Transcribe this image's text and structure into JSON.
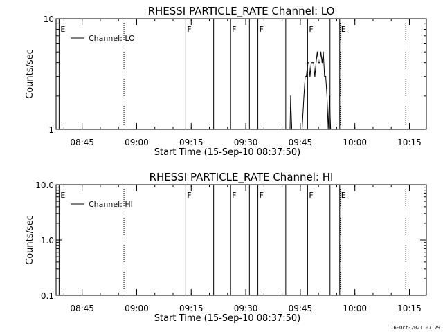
{
  "chart_data": [
    {
      "type": "line",
      "title": "RHESSI PARTICLE_RATE Channel: LO",
      "xlabel": "Start Time (15-Sep-10 08:37:50)",
      "ylabel": "Counts/sec",
      "yscale": "log",
      "ylim": [
        1,
        10
      ],
      "yticks": [
        {
          "v": 1,
          "label": "1"
        },
        {
          "v": 10,
          "label": "10"
        }
      ],
      "xlim": [
        "08:37:50",
        "10:19:40"
      ],
      "xticks": [
        "08:45",
        "09:00",
        "09:15",
        "09:30",
        "09:45",
        "10:00",
        "10:15"
      ],
      "legend": {
        "label": "Channel: LO",
        "position": "top-left"
      },
      "series": [
        {
          "name": "Channel: LO",
          "x": [
            "09:41:30",
            "09:42:10",
            "09:42:20",
            "09:42:40",
            "09:43:00",
            "09:43:20",
            "09:45:30",
            "09:46:00",
            "09:46:20",
            "09:46:40",
            "09:47:00",
            "09:47:20",
            "09:47:40",
            "09:48:00",
            "09:48:20",
            "09:48:40",
            "09:49:00",
            "09:49:20",
            "09:49:40",
            "09:50:00",
            "09:50:20",
            "09:50:40",
            "09:51:00",
            "09:51:20",
            "09:51:40",
            "09:52:00",
            "09:52:20",
            "09:52:40",
            "09:53:00",
            "09:53:20",
            "09:53:40"
          ],
          "y": [
            1,
            1,
            2,
            1,
            1,
            1,
            1,
            2,
            3,
            3,
            4,
            4,
            3,
            4,
            4,
            4,
            3,
            4,
            5,
            4,
            4,
            5,
            4,
            5,
            3,
            3,
            2,
            1,
            2,
            1,
            1
          ]
        }
      ],
      "event_markers": [
        {
          "time": "08:38:40",
          "label": "E",
          "style": "solid"
        },
        {
          "time": "09:13:30",
          "label": "F",
          "style": "solid"
        },
        {
          "time": "09:21:10",
          "label": "",
          "style": "solid"
        },
        {
          "time": "09:25:50",
          "label": "F",
          "style": "solid"
        },
        {
          "time": "09:31:00",
          "label": "",
          "style": "solid"
        },
        {
          "time": "09:33:20",
          "label": "F",
          "style": "solid"
        },
        {
          "time": "09:41:00",
          "label": "",
          "style": "solid"
        },
        {
          "time": "09:47:00",
          "label": "F",
          "style": "solid"
        },
        {
          "time": "09:53:10",
          "label": "",
          "style": "solid"
        },
        {
          "time": "09:55:50",
          "label": "E",
          "style": "solid"
        },
        {
          "time": "08:56:30",
          "label": "",
          "style": "dotted"
        },
        {
          "time": "09:56:00",
          "label": "",
          "style": "dotted"
        },
        {
          "time": "10:14:00",
          "label": "",
          "style": "dotted"
        }
      ]
    },
    {
      "type": "line",
      "title": "RHESSI PARTICLE_RATE Channel: HI",
      "xlabel": "Start Time (15-Sep-10 08:37:50)",
      "ylabel": "Counts/sec",
      "yscale": "log",
      "ylim": [
        0.1,
        10
      ],
      "yticks": [
        {
          "v": 0.1,
          "label": "0.1"
        },
        {
          "v": 1,
          "label": "1.0"
        },
        {
          "v": 10,
          "label": "10.0"
        }
      ],
      "xlim": [
        "08:37:50",
        "10:19:40"
      ],
      "xticks": [
        "08:45",
        "09:00",
        "09:15",
        "09:30",
        "09:45",
        "10:00",
        "10:15"
      ],
      "legend": {
        "label": "Channel: HI",
        "position": "top-left"
      },
      "series": [
        {
          "name": "Channel: HI",
          "x": [],
          "y": []
        }
      ],
      "event_markers": [
        {
          "time": "08:38:40",
          "label": "E",
          "style": "solid"
        },
        {
          "time": "09:13:30",
          "label": "F",
          "style": "solid"
        },
        {
          "time": "09:21:10",
          "label": "",
          "style": "solid"
        },
        {
          "time": "09:25:50",
          "label": "F",
          "style": "solid"
        },
        {
          "time": "09:31:00",
          "label": "",
          "style": "solid"
        },
        {
          "time": "09:33:20",
          "label": "F",
          "style": "solid"
        },
        {
          "time": "09:41:00",
          "label": "",
          "style": "solid"
        },
        {
          "time": "09:47:00",
          "label": "F",
          "style": "solid"
        },
        {
          "time": "09:53:10",
          "label": "",
          "style": "solid"
        },
        {
          "time": "09:55:50",
          "label": "E",
          "style": "solid"
        },
        {
          "time": "08:56:30",
          "label": "",
          "style": "dotted"
        },
        {
          "time": "09:56:00",
          "label": "",
          "style": "dotted"
        },
        {
          "time": "10:14:00",
          "label": "",
          "style": "dotted"
        }
      ]
    }
  ],
  "footer": {
    "timestamp": "16-Oct-2021 07:29"
  }
}
